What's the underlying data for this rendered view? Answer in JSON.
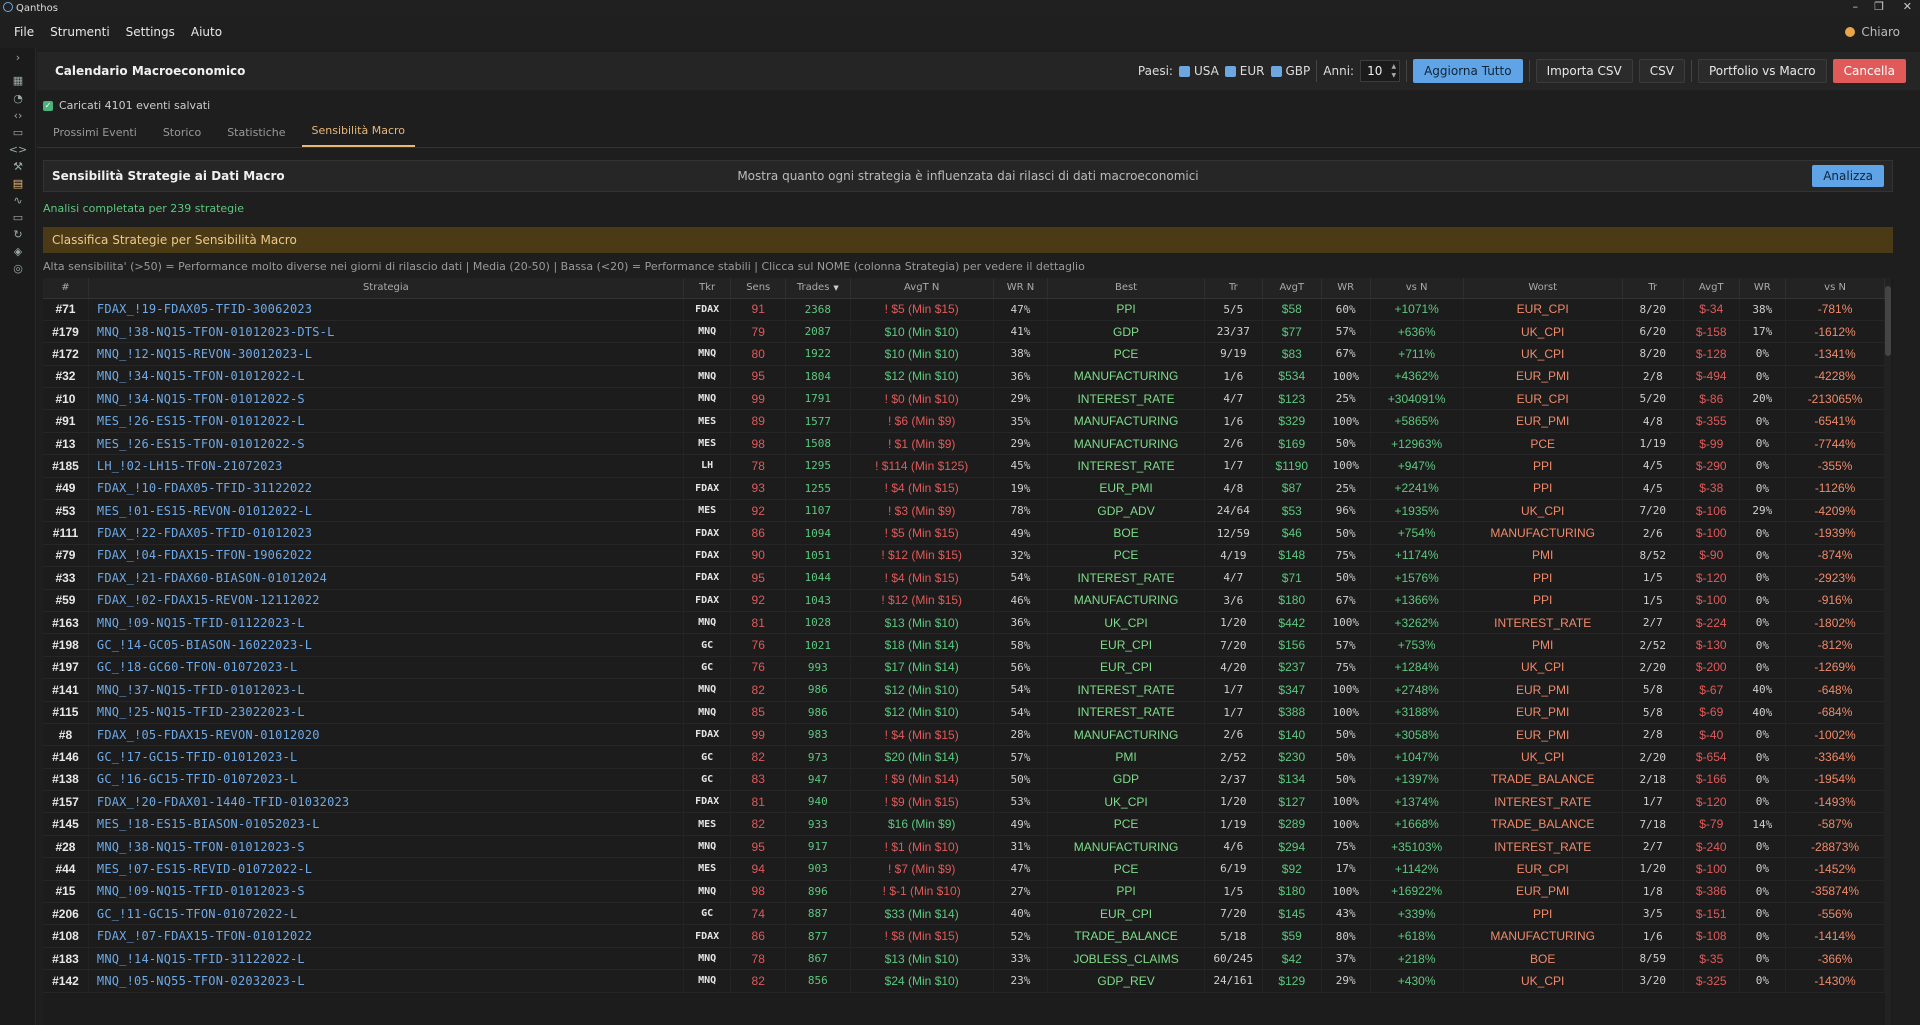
{
  "window": {
    "title": "Qanthos",
    "minimize": "–",
    "maximize": "❐",
    "close": "✕"
  },
  "menu": [
    "File",
    "Strumenti",
    "Settings",
    "Aiuto"
  ],
  "theme": {
    "label": "Chiaro"
  },
  "sidebar_icons": [
    "toggle-icon",
    "grid-icon",
    "pie-icon",
    "code-icon",
    "chat-icon",
    "code-brackets-icon",
    "wrench-icon",
    "calendar-icon",
    "pulse-icon",
    "monitor-icon",
    "refresh-icon",
    "shield-icon",
    "settings-circle-icon"
  ],
  "header": {
    "title": "Calendario Macroeconomico",
    "countries_label": "Paesi:",
    "countries": [
      "USA",
      "EUR",
      "GBP"
    ],
    "years_label": "Anni:",
    "years_value": "10",
    "buttons": {
      "update_all": "Aggiorna Tutto",
      "import_csv": "Importa CSV",
      "csv": "CSV",
      "portfolio": "Portfolio vs Macro",
      "cancel": "Cancella"
    }
  },
  "loaded_text": "Caricati 4101 eventi salvati",
  "tabs": [
    "Prossimi Eventi",
    "Storico",
    "Statistiche",
    "Sensibilità Macro"
  ],
  "panel": {
    "title": "Sensibilità Strategie ai Dati Macro",
    "description": "Mostra quanto ogni strategia è influenzata dai rilasci di dati macroeconomici",
    "analyze": "Analizza"
  },
  "status": "Analisi completata per 239 strategie",
  "banner": "Classifica Strategie per Sensibilità Macro",
  "legend": "Alta sensibilita' (>50) = Performance molto diverse nei giorni di rilascio dati | Media (20-50) | Bassa (<20) = Performance stabili | Clicca sul NOME (colonna Strategia) per vedere il dettaglio",
  "columns": [
    "#",
    "Strategia",
    "Tkr",
    "Sens",
    "Trades",
    "AvgT N",
    "WR N",
    "Best",
    "Tr",
    "AvgT",
    "WR",
    "vs N",
    "Worst",
    "Tr",
    "AvgT",
    "WR",
    "vs N"
  ],
  "sorted_column_indicator": "▼",
  "rows": [
    [
      "#71",
      "FDAX_!19-FDAX05-TFID-30062023",
      "FDAX",
      "91",
      "2368",
      "! $5 (Min $15)",
      "47%",
      "PPI",
      "5/5",
      "$58",
      "60%",
      "+1071%",
      "EUR_CPI",
      "8/20",
      "$-34",
      "38%",
      "-781%"
    ],
    [
      "#179",
      "MNQ_!38-NQ15-TFON-01012023-DTS-L",
      "MNQ",
      "79",
      "2087",
      "$10 (Min $10)",
      "41%",
      "GDP",
      "23/37",
      "$77",
      "57%",
      "+636%",
      "UK_CPI",
      "6/20",
      "$-158",
      "17%",
      "-1612%"
    ],
    [
      "#172",
      "MNQ_!12-NQ15-REVON-30012023-L",
      "MNQ",
      "80",
      "1922",
      "$10 (Min $10)",
      "38%",
      "PCE",
      "9/19",
      "$83",
      "67%",
      "+711%",
      "UK_CPI",
      "8/20",
      "$-128",
      "0%",
      "-1341%"
    ],
    [
      "#32",
      "MNQ_!34-NQ15-TFON-01012022-L",
      "MNQ",
      "95",
      "1804",
      "$12 (Min $10)",
      "36%",
      "MANUFACTURING",
      "1/6",
      "$534",
      "100%",
      "+4362%",
      "EUR_PMI",
      "2/8",
      "$-494",
      "0%",
      "-4228%"
    ],
    [
      "#10",
      "MNQ_!34-NQ15-TFON-01012022-S",
      "MNQ",
      "99",
      "1791",
      "! $0 (Min $10)",
      "29%",
      "INTEREST_RATE",
      "4/7",
      "$123",
      "25%",
      "+304091%",
      "EUR_CPI",
      "5/20",
      "$-86",
      "20%",
      "-213065%"
    ],
    [
      "#91",
      "MES_!26-ES15-TFON-01012022-L",
      "MES",
      "89",
      "1577",
      "! $6 (Min $9)",
      "35%",
      "MANUFACTURING",
      "1/6",
      "$329",
      "100%",
      "+5865%",
      "EUR_PMI",
      "4/8",
      "$-355",
      "0%",
      "-6541%"
    ],
    [
      "#13",
      "MES_!26-ES15-TFON-01012022-S",
      "MES",
      "98",
      "1508",
      "! $1 (Min $9)",
      "29%",
      "MANUFACTURING",
      "2/6",
      "$169",
      "50%",
      "+12963%",
      "PCE",
      "1/19",
      "$-99",
      "0%",
      "-7744%"
    ],
    [
      "#185",
      "LH_!02-LH15-TFON-21072023",
      "LH",
      "78",
      "1295",
      "! $114 (Min $125)",
      "45%",
      "INTEREST_RATE",
      "1/7",
      "$1190",
      "100%",
      "+947%",
      "PPI",
      "4/5",
      "$-290",
      "0%",
      "-355%"
    ],
    [
      "#49",
      "FDAX_!10-FDAX05-TFID-31122022",
      "FDAX",
      "93",
      "1255",
      "! $4 (Min $15)",
      "19%",
      "EUR_PMI",
      "4/8",
      "$87",
      "25%",
      "+2241%",
      "PPI",
      "4/5",
      "$-38",
      "0%",
      "-1126%"
    ],
    [
      "#53",
      "MES_!01-ES15-REVON-01012022-L",
      "MES",
      "92",
      "1107",
      "! $3 (Min $9)",
      "78%",
      "GDP_ADV",
      "24/64",
      "$53",
      "96%",
      "+1935%",
      "UK_CPI",
      "7/20",
      "$-106",
      "29%",
      "-4209%"
    ],
    [
      "#111",
      "FDAX_!22-FDAX05-TFID-01012023",
      "FDAX",
      "86",
      "1094",
      "! $5 (Min $15)",
      "49%",
      "BOE",
      "12/59",
      "$46",
      "50%",
      "+754%",
      "MANUFACTURING",
      "2/6",
      "$-100",
      "0%",
      "-1939%"
    ],
    [
      "#79",
      "FDAX_!04-FDAX15-TFON-19062022",
      "FDAX",
      "90",
      "1051",
      "! $12 (Min $15)",
      "32%",
      "PCE",
      "4/19",
      "$148",
      "75%",
      "+1174%",
      "PMI",
      "8/52",
      "$-90",
      "0%",
      "-874%"
    ],
    [
      "#33",
      "FDAX_!21-FDAX60-BIASON-01012024",
      "FDAX",
      "95",
      "1044",
      "! $4 (Min $15)",
      "54%",
      "INTEREST_RATE",
      "4/7",
      "$71",
      "50%",
      "+1576%",
      "PPI",
      "1/5",
      "$-120",
      "0%",
      "-2923%"
    ],
    [
      "#59",
      "FDAX_!02-FDAX15-REVON-12112022",
      "FDAX",
      "92",
      "1043",
      "! $12 (Min $15)",
      "46%",
      "MANUFACTURING",
      "3/6",
      "$180",
      "67%",
      "+1366%",
      "PPI",
      "1/5",
      "$-100",
      "0%",
      "-916%"
    ],
    [
      "#163",
      "MNQ_!09-NQ15-TFID-01122023-L",
      "MNQ",
      "81",
      "1028",
      "$13 (Min $10)",
      "36%",
      "UK_CPI",
      "1/20",
      "$442",
      "100%",
      "+3262%",
      "INTEREST_RATE",
      "2/7",
      "$-224",
      "0%",
      "-1802%"
    ],
    [
      "#198",
      "GC_!14-GC05-BIASON-16022023-L",
      "GC",
      "76",
      "1021",
      "$18 (Min $14)",
      "58%",
      "EUR_CPI",
      "7/20",
      "$156",
      "57%",
      "+753%",
      "PMI",
      "2/52",
      "$-130",
      "0%",
      "-812%"
    ],
    [
      "#197",
      "GC_!18-GC60-TFON-01072023-L",
      "GC",
      "76",
      "993",
      "$17 (Min $14)",
      "56%",
      "EUR_CPI",
      "4/20",
      "$237",
      "75%",
      "+1284%",
      "UK_CPI",
      "2/20",
      "$-200",
      "0%",
      "-1269%"
    ],
    [
      "#141",
      "MNQ_!37-NQ15-TFID-01012023-L",
      "MNQ",
      "82",
      "986",
      "$12 (Min $10)",
      "54%",
      "INTEREST_RATE",
      "1/7",
      "$347",
      "100%",
      "+2748%",
      "EUR_PMI",
      "5/8",
      "$-67",
      "40%",
      "-648%"
    ],
    [
      "#115",
      "MNQ_!25-NQ15-TFID-23022023-L",
      "MNQ",
      "85",
      "986",
      "$12 (Min $10)",
      "54%",
      "INTEREST_RATE",
      "1/7",
      "$388",
      "100%",
      "+3188%",
      "EUR_PMI",
      "5/8",
      "$-69",
      "40%",
      "-684%"
    ],
    [
      "#8",
      "FDAX_!05-FDAX15-REVON-01012020",
      "FDAX",
      "99",
      "983",
      "! $4 (Min $15)",
      "28%",
      "MANUFACTURING",
      "2/6",
      "$140",
      "50%",
      "+3058%",
      "EUR_PMI",
      "2/8",
      "$-40",
      "0%",
      "-1002%"
    ],
    [
      "#146",
      "GC_!17-GC15-TFID-01012023-L",
      "GC",
      "82",
      "973",
      "$20 (Min $14)",
      "57%",
      "PMI",
      "2/52",
      "$230",
      "50%",
      "+1047%",
      "UK_CPI",
      "2/20",
      "$-654",
      "0%",
      "-3364%"
    ],
    [
      "#138",
      "GC_!16-GC15-TFID-01072023-L",
      "GC",
      "83",
      "947",
      "! $9 (Min $14)",
      "50%",
      "GDP",
      "2/37",
      "$134",
      "50%",
      "+1397%",
      "TRADE_BALANCE",
      "2/18",
      "$-166",
      "0%",
      "-1954%"
    ],
    [
      "#157",
      "FDAX_!20-FDAX01-1440-TFID-01032023",
      "FDAX",
      "81",
      "940",
      "! $9 (Min $15)",
      "53%",
      "UK_CPI",
      "1/20",
      "$127",
      "100%",
      "+1374%",
      "INTEREST_RATE",
      "1/7",
      "$-120",
      "0%",
      "-1493%"
    ],
    [
      "#145",
      "MES_!18-ES15-BIASON-01052023-L",
      "MES",
      "82",
      "933",
      "$16 (Min $9)",
      "49%",
      "PCE",
      "1/19",
      "$289",
      "100%",
      "+1668%",
      "TRADE_BALANCE",
      "7/18",
      "$-79",
      "14%",
      "-587%"
    ],
    [
      "#28",
      "MNQ_!38-NQ15-TFON-01012023-S",
      "MNQ",
      "95",
      "917",
      "! $1 (Min $10)",
      "31%",
      "MANUFACTURING",
      "4/6",
      "$294",
      "75%",
      "+35103%",
      "INTEREST_RATE",
      "2/7",
      "$-240",
      "0%",
      "-28873%"
    ],
    [
      "#44",
      "MES_!07-ES15-REVID-01072022-L",
      "MES",
      "94",
      "903",
      "! $7 (Min $9)",
      "47%",
      "PCE",
      "6/19",
      "$92",
      "17%",
      "+1142%",
      "EUR_CPI",
      "1/20",
      "$-100",
      "0%",
      "-1452%"
    ],
    [
      "#15",
      "MNQ_!09-NQ15-TFID-01012023-S",
      "MNQ",
      "98",
      "896",
      "! $-1 (Min $10)",
      "27%",
      "PPI",
      "1/5",
      "$180",
      "100%",
      "+16922%",
      "EUR_PMI",
      "1/8",
      "$-386",
      "0%",
      "-35874%"
    ],
    [
      "#206",
      "GC_!11-GC15-TFON-01072022-L",
      "GC",
      "74",
      "887",
      "$33 (Min $14)",
      "40%",
      "EUR_CPI",
      "7/20",
      "$145",
      "43%",
      "+339%",
      "PPI",
      "3/5",
      "$-151",
      "0%",
      "-556%"
    ],
    [
      "#108",
      "FDAX_!07-FDAX15-TFON-01012022",
      "FDAX",
      "86",
      "877",
      "! $8 (Min $15)",
      "52%",
      "TRADE_BALANCE",
      "5/18",
      "$59",
      "80%",
      "+618%",
      "MANUFACTURING",
      "1/6",
      "$-108",
      "0%",
      "-1414%"
    ],
    [
      "#183",
      "MNQ_!14-NQ15-TFID-31122022-L",
      "MNQ",
      "78",
      "867",
      "$13 (Min $10)",
      "33%",
      "JOBLESS_CLAIMS",
      "60/245",
      "$42",
      "37%",
      "+218%",
      "BOE",
      "8/59",
      "$-35",
      "0%",
      "-366%"
    ],
    [
      "#142",
      "MNQ_!05-NQ55-TFON-02032023-L",
      "MNQ",
      "82",
      "856",
      "$24 (Min $10)",
      "23%",
      "GDP_REV",
      "24/161",
      "$129",
      "29%",
      "+430%",
      "UK_CPI",
      "3/20",
      "$-325",
      "0%",
      "-1430%"
    ]
  ]
}
